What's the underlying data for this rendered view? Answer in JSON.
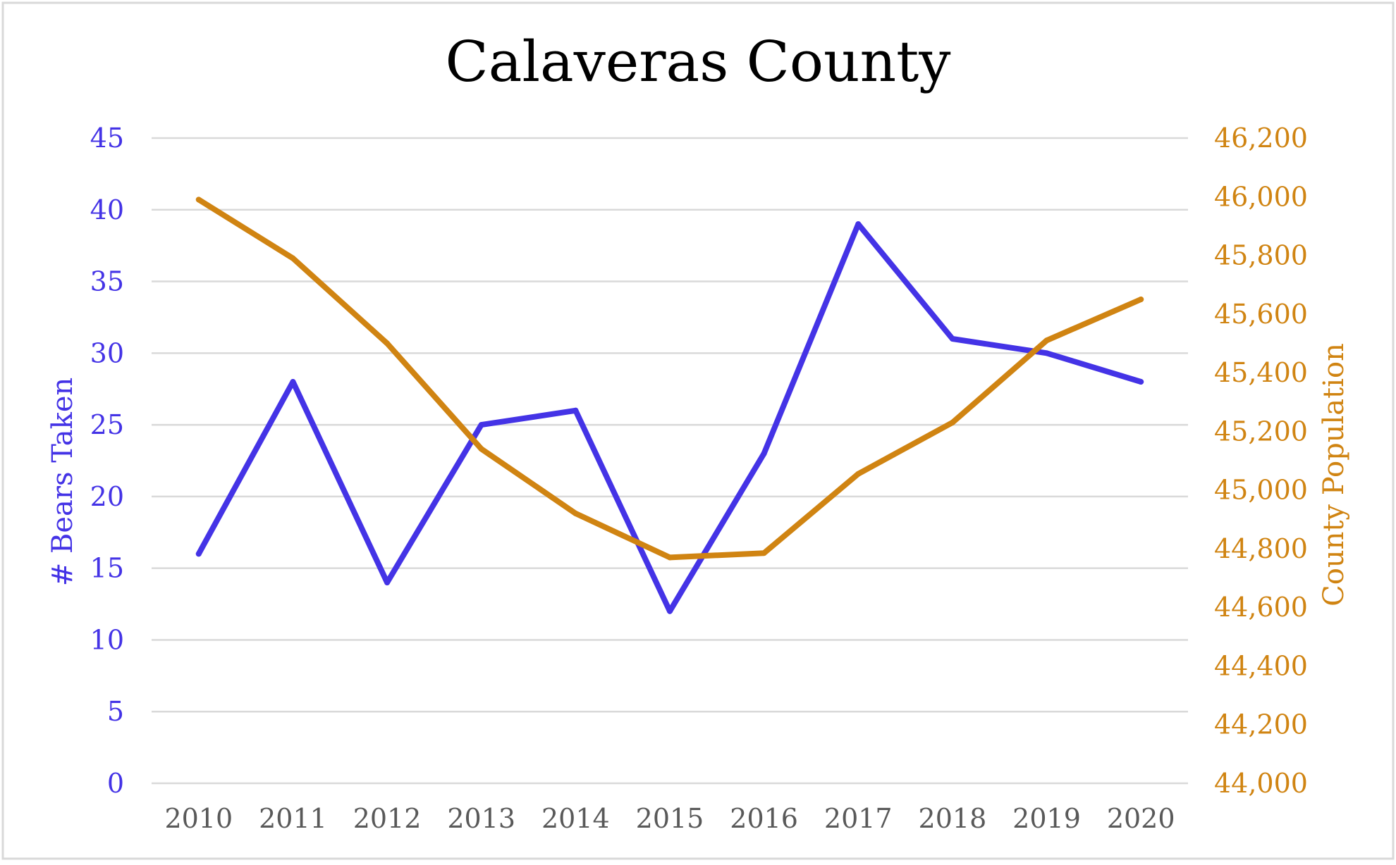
{
  "chart_data": {
    "type": "line",
    "title": "Calaveras County",
    "xlabel": "",
    "categories": [
      "2010",
      "2011",
      "2012",
      "2013",
      "2014",
      "2015",
      "2016",
      "2017",
      "2018",
      "2019",
      "2020"
    ],
    "y_left": {
      "label": "# Bears Taken",
      "range": [
        0,
        45
      ],
      "ticks": [
        0,
        5,
        10,
        15,
        20,
        25,
        30,
        35,
        40,
        45
      ],
      "tick_labels": [
        "0",
        "5",
        "10",
        "15",
        "20",
        "25",
        "30",
        "35",
        "40",
        "45"
      ]
    },
    "y_right": {
      "label": "County Population",
      "range": [
        44000,
        46200
      ],
      "ticks": [
        44000,
        44200,
        44400,
        44600,
        44800,
        45000,
        45200,
        45400,
        45600,
        45800,
        46000,
        46200
      ],
      "tick_labels": [
        "44,000",
        "44,200",
        "44,400",
        "44,600",
        "44,800",
        "45,000",
        "45,200",
        "45,400",
        "45,600",
        "45,800",
        "46,000",
        "46,200"
      ]
    },
    "series": [
      {
        "name": "# Bears Taken",
        "axis": "left",
        "color": "#4433e6",
        "values": [
          16,
          28,
          14,
          25,
          26,
          12,
          23,
          39,
          31,
          30,
          28
        ]
      },
      {
        "name": "County Population",
        "axis": "right",
        "color": "#d08412",
        "values": [
          45990,
          45790,
          45500,
          45140,
          44920,
          44770,
          44785,
          45055,
          45230,
          45510,
          45650
        ]
      }
    ],
    "grid": true,
    "legend": "none"
  }
}
